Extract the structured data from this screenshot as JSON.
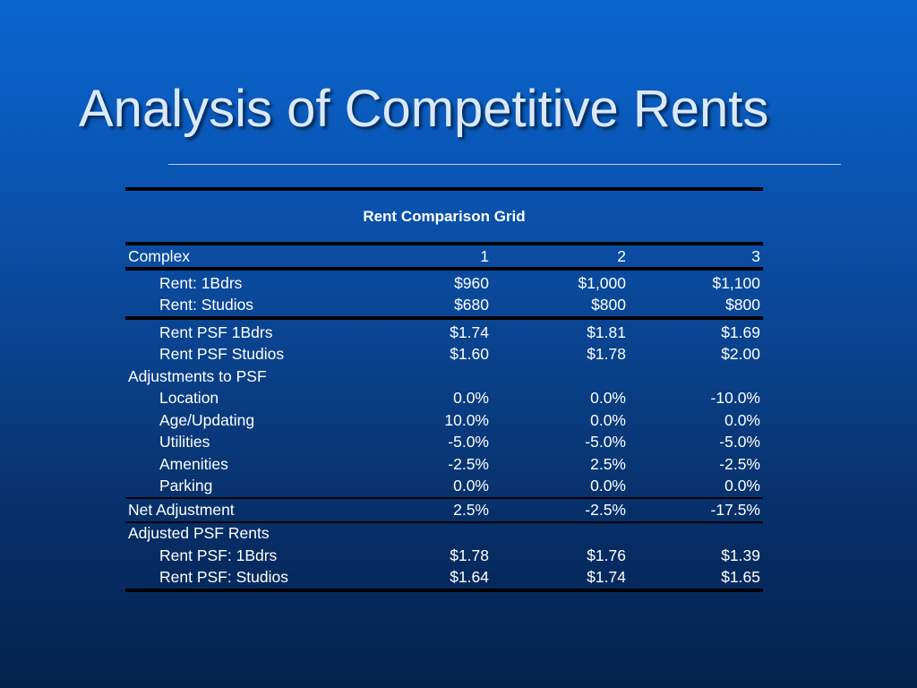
{
  "slide": {
    "title": "Analysis of Competitive Rents"
  },
  "table": {
    "caption": "Rent Comparison Grid",
    "header": {
      "label": "Complex",
      "c1": "1",
      "c2": "2",
      "c3": "3"
    },
    "rents": [
      {
        "label": "Rent: 1Bdrs",
        "c1": "$960",
        "c2": "$1,000",
        "c3": "$1,100"
      },
      {
        "label": "Rent: Studios",
        "c1": "$680",
        "c2": "$800",
        "c3": "$800"
      }
    ],
    "psf": [
      {
        "label": "Rent PSF 1Bdrs",
        "c1": "$1.74",
        "c2": "$1.81",
        "c3": "$1.69"
      },
      {
        "label": "Rent PSF Studios",
        "c1": "$1.60",
        "c2": "$1.78",
        "c3": "$2.00"
      }
    ],
    "adjustments_heading": "Adjustments to PSF",
    "adjustments": [
      {
        "label": "Location",
        "c1": "0.0%",
        "c2": "0.0%",
        "c3": "-10.0%"
      },
      {
        "label": "Age/Updating",
        "c1": "10.0%",
        "c2": "0.0%",
        "c3": "0.0%"
      },
      {
        "label": "Utilities",
        "c1": "-5.0%",
        "c2": "-5.0%",
        "c3": "-5.0%"
      },
      {
        "label": "Amenities",
        "c1": "-2.5%",
        "c2": "2.5%",
        "c3": "-2.5%"
      },
      {
        "label": "Parking",
        "c1": "0.0%",
        "c2": "0.0%",
        "c3": "0.0%"
      }
    ],
    "net": {
      "label": "Net Adjustment",
      "c1": "2.5%",
      "c2": "-2.5%",
      "c3": "-17.5%"
    },
    "adjusted_heading": "Adjusted PSF Rents",
    "adjusted": [
      {
        "label": "Rent PSF: 1Bdrs",
        "c1": "$1.78",
        "c2": "$1.76",
        "c3": "$1.39"
      },
      {
        "label": "Rent PSF: Studios",
        "c1": "$1.64",
        "c2": "$1.74",
        "c3": "$1.65"
      }
    ]
  }
}
